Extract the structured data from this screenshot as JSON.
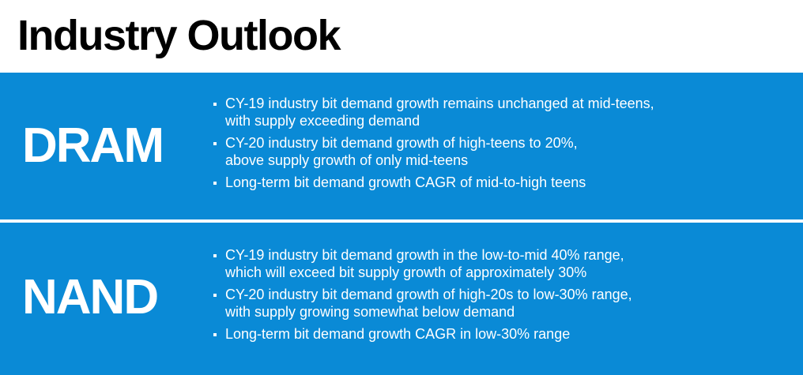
{
  "title": "Industry Outlook",
  "sections": [
    {
      "label": "DRAM",
      "bullets": [
        [
          "CY-19 industry bit demand growth remains unchanged at mid-teens,",
          "with supply exceeding demand"
        ],
        [
          "CY-20 industry bit demand growth of high-teens to 20%,",
          "above supply growth of only mid-teens"
        ],
        [
          "Long-term bit demand growth CAGR of mid-to-high teens"
        ]
      ]
    },
    {
      "label": "NAND",
      "bullets": [
        [
          "CY-19 industry bit demand growth in the low-to-mid 40% range,",
          "which will exceed bit supply growth of approximately 30%"
        ],
        [
          "CY-20 industry bit demand growth of high-20s to low-30% range,",
          "with supply growing somewhat below demand"
        ],
        [
          "Long-term bit demand growth CAGR in low-30% range"
        ]
      ]
    }
  ],
  "colors": {
    "panel_background": "#0a8ad6",
    "title_text": "#000000",
    "panel_text": "#ffffff"
  }
}
